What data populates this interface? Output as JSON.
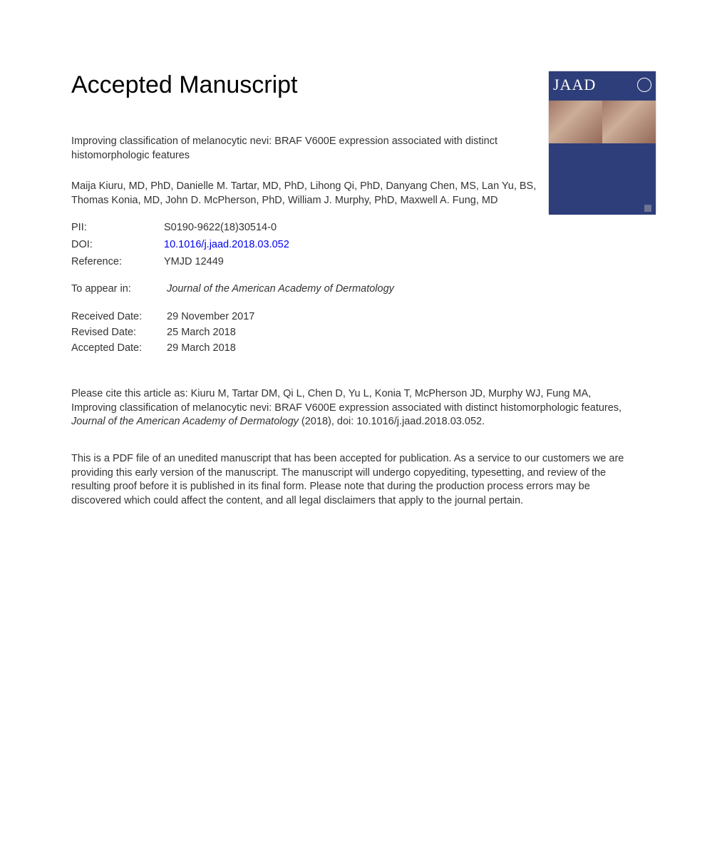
{
  "heading": "Accepted Manuscript",
  "article_title": "Improving classification of melanocytic nevi: BRAF V600E expression associated with distinct histomorphologic features",
  "authors": "Maija Kiuru, MD, PhD, Danielle M. Tartar, MD, PhD, Lihong Qi, PhD, Danyang Chen, MS, Lan Yu, BS, Thomas Konia, MD, John D. McPherson, PhD, William J. Murphy, PhD, Maxwell A. Fung, MD",
  "meta": {
    "pii_label": "PII:",
    "pii_value": "S0190-9622(18)30514-0",
    "doi_label": "DOI:",
    "doi_value": "10.1016/j.jaad.2018.03.052",
    "ref_label": "Reference:",
    "ref_value": "YMJD 12449"
  },
  "to_appear": {
    "label": "To appear in:",
    "journal": "Journal of the American Academy of Dermatology"
  },
  "dates": {
    "received_label": "Received Date:",
    "received_value": "29 November 2017",
    "revised_label": "Revised Date:",
    "revised_value": "25 March 2018",
    "accepted_label": "Accepted Date:",
    "accepted_value": "29 March 2018"
  },
  "citation": {
    "prefix": "Please cite this article as: Kiuru M, Tartar DM, Qi L, Chen D, Yu L, Konia T, McPherson JD, Murphy WJ, Fung MA, Improving classification of melanocytic nevi: BRAF V600E expression associated with distinct histomorphologic features, ",
    "journal": "Journal of the American Academy of Dermatology",
    "suffix": " (2018), doi: 10.1016/j.jaad.2018.03.052."
  },
  "disclaimer": "This is a PDF file of an unedited manuscript that has been accepted for publication. As a service to our customers we are providing this early version of the manuscript. The manuscript will undergo copyediting, typesetting, and review of the resulting proof before it is published in its final form. Please note that during the production process errors may be discovered which could affect the content, and all legal disclaimers that apply to the journal pertain.",
  "cover": {
    "logo": "JAAD",
    "bg_color": "#2e3e7a",
    "text_color": "#ffffff"
  }
}
